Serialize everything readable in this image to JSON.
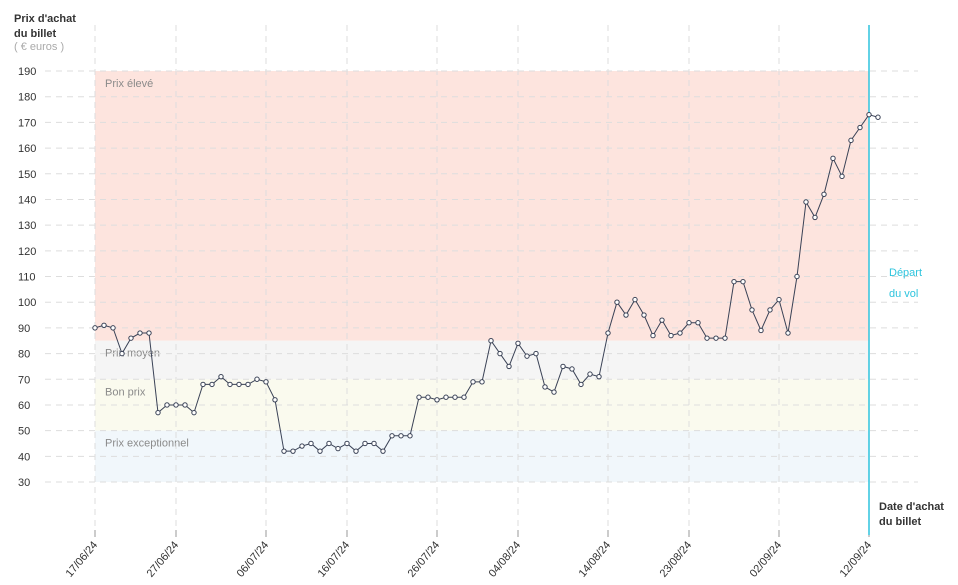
{
  "chart_data": {
    "type": "line",
    "y_title": [
      "Prix d'achat",
      "du billet"
    ],
    "y_unit": "( € euros )",
    "x_title": [
      "Date d'achat",
      "du billet"
    ],
    "departure_label": [
      "Départ",
      "du vol"
    ],
    "bands": [
      {
        "label": "Prix élevé",
        "from": 85,
        "to": 190,
        "color": "#fde4de"
      },
      {
        "label": "Prix moyen",
        "from": 70,
        "to": 85,
        "color": "#f5f5f5"
      },
      {
        "label": "Bon prix",
        "from": 50,
        "to": 70,
        "color": "#fafaee"
      },
      {
        "label": "Prix exceptionnel",
        "from": 30,
        "to": 50,
        "color": "#f1f7fb"
      }
    ],
    "categories": [
      "17/06/24",
      null,
      null,
      null,
      null,
      null,
      null,
      null,
      null,
      "27/06/24",
      null,
      null,
      null,
      null,
      null,
      null,
      null,
      null,
      null,
      "06/07/24",
      null,
      null,
      null,
      null,
      null,
      null,
      null,
      null,
      "16/07/24",
      null,
      null,
      null,
      null,
      null,
      null,
      null,
      null,
      null,
      "26/07/24",
      null,
      null,
      null,
      null,
      null,
      null,
      null,
      null,
      "04/08/24",
      null,
      null,
      null,
      null,
      null,
      null,
      null,
      null,
      null,
      "14/08/24",
      null,
      null,
      null,
      null,
      null,
      null,
      null,
      null,
      "23/08/24",
      null,
      null,
      null,
      null,
      null,
      null,
      null,
      null,
      null,
      "02/09/24",
      null,
      null,
      null,
      null,
      null,
      null,
      null,
      null,
      null,
      "12/09/24",
      null
    ],
    "series": [
      {
        "color": "#3a4256",
        "values": [
          90,
          91,
          90,
          80,
          86,
          88,
          88,
          57,
          60,
          60,
          60,
          57,
          68,
          68,
          71,
          68,
          68,
          68,
          70,
          69,
          62,
          42,
          42,
          44,
          45,
          42,
          45,
          43,
          45,
          42,
          45,
          45,
          42,
          48,
          48,
          48,
          63,
          63,
          62,
          63,
          63,
          63,
          69,
          69,
          85,
          80,
          75,
          84,
          79,
          80,
          67,
          65,
          75,
          74,
          68,
          72,
          71,
          88,
          100,
          95,
          101,
          95,
          87,
          93,
          87,
          88,
          92,
          92,
          86,
          86,
          86,
          108,
          108,
          97,
          89,
          97,
          101,
          88,
          110,
          139,
          133,
          142,
          156,
          149,
          163,
          168,
          173,
          172
        ]
      }
    ],
    "ylim": [
      30,
      190
    ],
    "yticks": [
      30,
      40,
      50,
      60,
      70,
      80,
      90,
      100,
      110,
      120,
      130,
      140,
      150,
      160,
      170,
      180,
      190
    ],
    "grid": true,
    "departure_color": "#2ec4dd"
  }
}
